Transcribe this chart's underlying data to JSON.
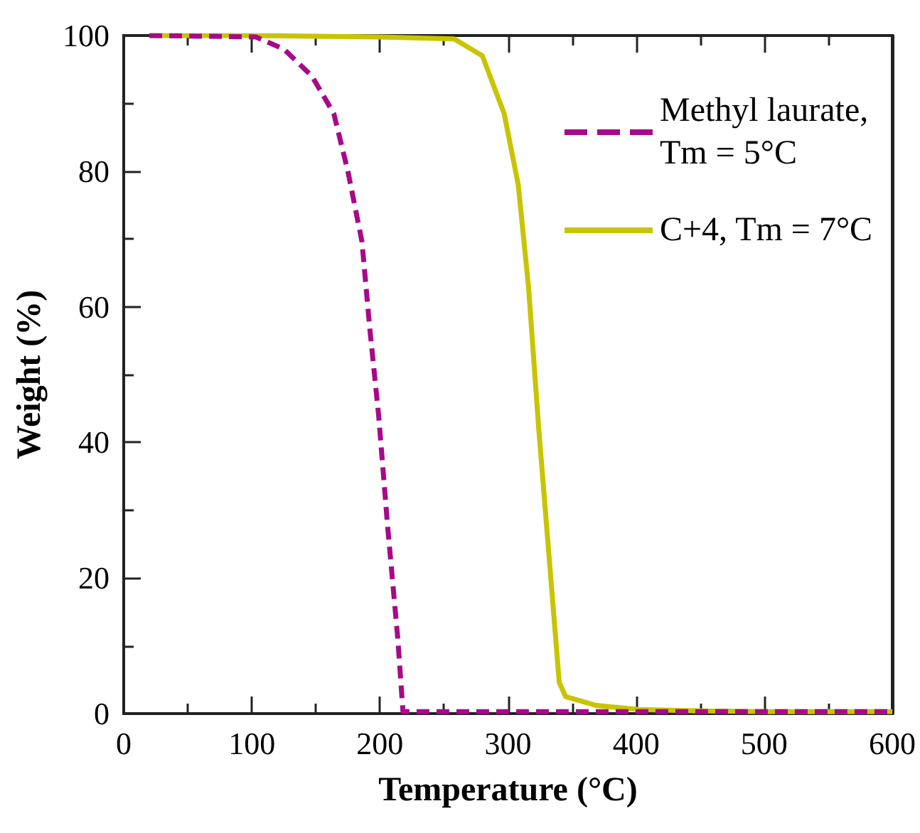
{
  "chart_data": {
    "type": "line",
    "xlabel": "Temperature (°C)",
    "ylabel": "Weight (%)",
    "xlim": [
      0,
      600
    ],
    "xticks": [
      0,
      100,
      200,
      300,
      400,
      500,
      600
    ],
    "ylim": [
      0,
      100
    ],
    "yticks": [
      0,
      20,
      40,
      60,
      80,
      100
    ],
    "grid": false,
    "legend": "top right",
    "marker": "none",
    "series": [
      {
        "name": "Methyl laurate,\nTm = 5°C",
        "color": "#a8088a",
        "line_style": "dashed",
        "x": [
          20,
          60,
          103,
          125,
          147,
          164,
          175,
          186,
          192,
          199,
          206,
          214,
          218,
          250,
          300,
          400,
          500,
          600
        ],
        "values": [
          100,
          99.9,
          99.8,
          98,
          94,
          88.5,
          80,
          69.6,
          57,
          44,
          27.7,
          11,
          0.3,
          0.3,
          0.3,
          0.3,
          0.3,
          0.3
        ]
      },
      {
        "name": "C+4, Tm = 7°C",
        "color": "#c8c400",
        "line_style": "solid",
        "x": [
          20,
          100,
          200,
          258,
          280,
          297,
          308,
          316,
          324,
          333,
          340,
          345,
          369,
          402,
          450,
          500,
          600
        ],
        "values": [
          100,
          100,
          99.8,
          99.5,
          97,
          88.5,
          78,
          63,
          42,
          21,
          4.6,
          2.5,
          1.2,
          0.6,
          0.4,
          0.3,
          0.3
        ]
      }
    ]
  }
}
